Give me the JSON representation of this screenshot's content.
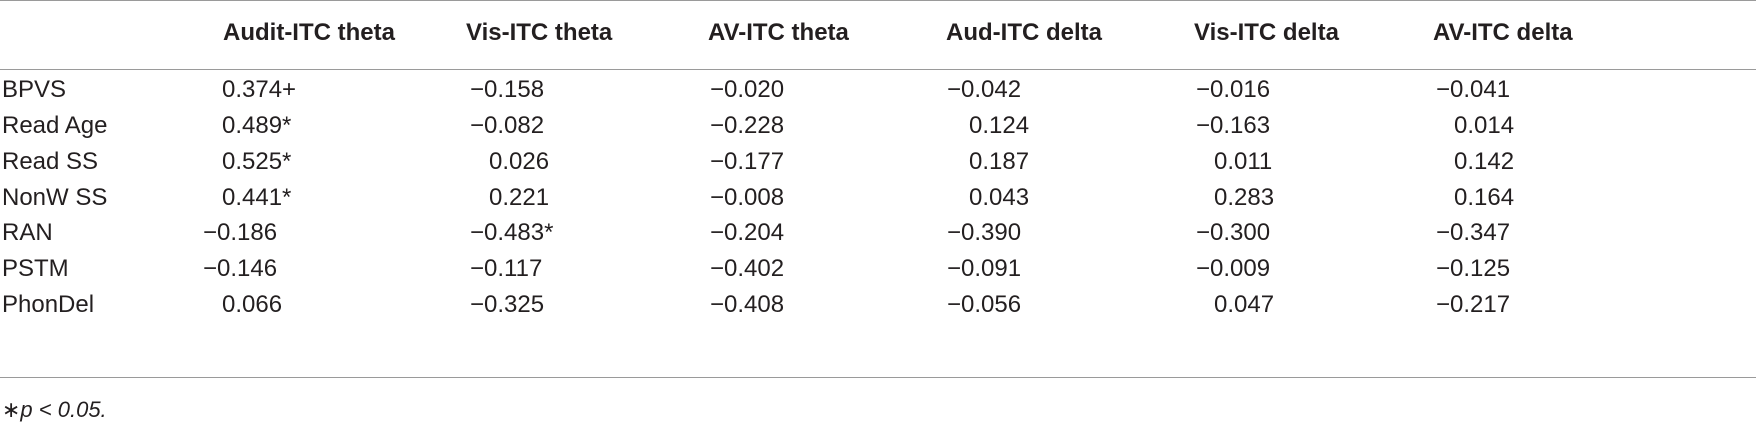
{
  "table": {
    "columns": [
      "",
      "Audit-ITC theta",
      "Vis-ITC theta",
      "AV-ITC theta",
      "Aud-ITC delta",
      "Vis-ITC delta",
      "AV-ITC delta"
    ],
    "rows": [
      {
        "label": "BPVS",
        "values": [
          "0.374+",
          "−0.158",
          "−0.020",
          "−0.042",
          "−0.016",
          "−0.041"
        ]
      },
      {
        "label": "Read Age",
        "values": [
          "0.489*",
          "−0.082",
          "−0.228",
          "0.124",
          "−0.163",
          "0.014"
        ]
      },
      {
        "label": "Read SS",
        "values": [
          "0.525*",
          "0.026",
          "−0.177",
          "0.187",
          "0.011",
          "0.142"
        ]
      },
      {
        "label": "NonW SS",
        "values": [
          "0.441*",
          "0.221",
          "−0.008",
          "0.043",
          "0.283",
          "0.164"
        ]
      },
      {
        "label": "RAN",
        "values": [
          "−0.186",
          "−0.483*",
          "−0.204",
          "−0.390",
          "−0.300",
          "−0.347"
        ]
      },
      {
        "label": "PSTM",
        "values": [
          "−0.146",
          "−0.117",
          "−0.402",
          "−0.091",
          "−0.009",
          "−0.125"
        ]
      },
      {
        "label": "PhonDel",
        "values": [
          "0.066",
          "−0.325",
          "−0.408",
          "−0.056",
          "0.047",
          "−0.217"
        ]
      }
    ],
    "footnote": "∗p < 0.05."
  }
}
